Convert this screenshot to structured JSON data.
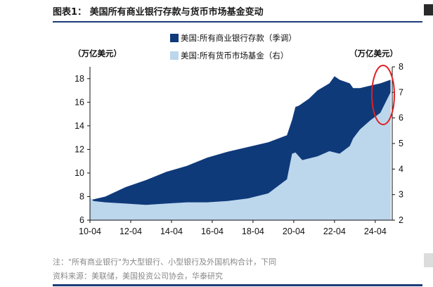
{
  "header": {
    "title": "图表1：  美国所有商业银行存款与货币市场基金变动"
  },
  "footer": {
    "note": "注：\"所有商业银行\"为大型银行、小型银行及外国机构合计，下同",
    "source": "资料来源：美联储，美国投资公司协会，华泰研究"
  },
  "colors": {
    "deposits": "#0f3a7a",
    "mmf": "#bcd6ec",
    "highlight": "#e02020",
    "rule": "#1d3b78"
  },
  "chart_data": {
    "type": "area",
    "x_ticks": [
      "10-04",
      "12-04",
      "14-04",
      "16-04",
      "18-04",
      "20-04",
      "22-04",
      "24-04"
    ],
    "left_axis": {
      "unit": "（万亿美元）",
      "ylim": [
        6,
        19
      ],
      "ticks": [
        6,
        8,
        10,
        12,
        14,
        16,
        18
      ]
    },
    "right_axis": {
      "unit": "（万亿美元）",
      "ylim": [
        2,
        8
      ],
      "ticks": [
        2,
        3,
        4,
        5,
        6,
        7,
        8
      ]
    },
    "series": [
      {
        "name": "美国:所有商业银行存款（季调）",
        "axis": "left",
        "x": [
          "2010-04",
          "2011-01",
          "2012-01",
          "2013-01",
          "2014-01",
          "2015-01",
          "2016-01",
          "2017-01",
          "2018-01",
          "2019-01",
          "2019-12",
          "2020-03",
          "2020-05",
          "2020-07",
          "2021-01",
          "2021-06",
          "2022-01",
          "2022-04",
          "2022-07",
          "2023-01",
          "2023-03",
          "2023-07",
          "2024-01",
          "2024-07",
          "2025-01"
        ],
        "values": [
          7.7,
          8.0,
          8.8,
          9.4,
          10.1,
          10.6,
          11.3,
          11.8,
          12.2,
          12.6,
          13.2,
          14.5,
          15.6,
          15.7,
          16.3,
          17.0,
          17.6,
          18.2,
          17.9,
          17.6,
          17.2,
          17.2,
          17.4,
          17.6,
          17.9
        ]
      },
      {
        "name": "美国:所有货币市场基金（右）",
        "axis": "right",
        "x": [
          "2010-04",
          "2010-06",
          "2011-01",
          "2012-01",
          "2013-01",
          "2014-01",
          "2015-01",
          "2016-01",
          "2017-01",
          "2018-01",
          "2019-01",
          "2019-12",
          "2020-03",
          "2020-05",
          "2020-09",
          "2021-06",
          "2022-01",
          "2022-07",
          "2023-01",
          "2023-03",
          "2023-07",
          "2024-01",
          "2024-07",
          "2025-01"
        ],
        "values": [
          2.9,
          2.75,
          2.7,
          2.65,
          2.6,
          2.65,
          2.7,
          2.7,
          2.75,
          2.85,
          3.05,
          3.6,
          4.6,
          4.65,
          4.35,
          4.5,
          4.7,
          4.6,
          4.9,
          5.2,
          5.55,
          5.9,
          6.2,
          7.0
        ]
      }
    ],
    "annotation": "red-ellipse-around-recent-values"
  }
}
